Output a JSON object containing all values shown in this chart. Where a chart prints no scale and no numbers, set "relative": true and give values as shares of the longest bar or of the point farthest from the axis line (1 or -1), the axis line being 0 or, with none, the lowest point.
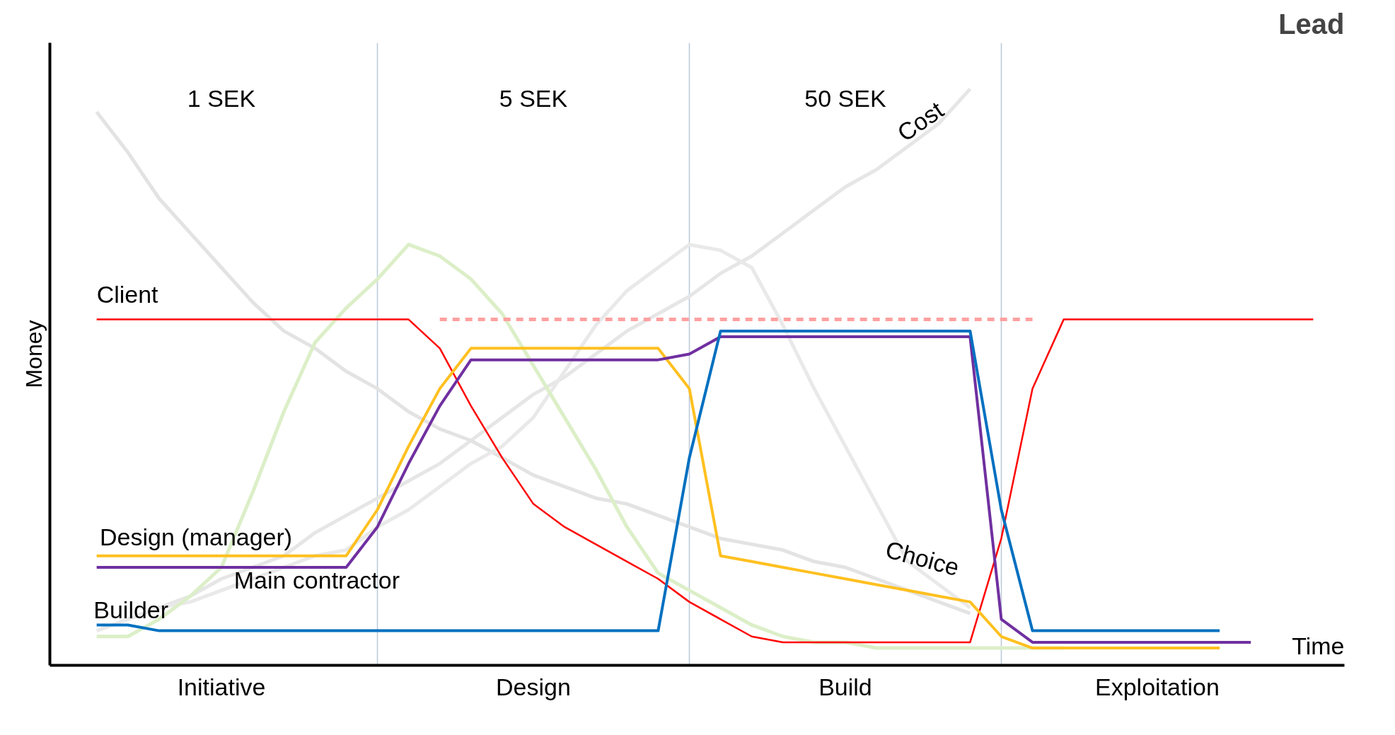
{
  "chart_data": {
    "type": "line",
    "title": "Lead",
    "xlabel": "Time",
    "ylabel": "Money",
    "relative": true,
    "legend": false,
    "grid": "x",
    "marker": "none",
    "categories": [
      null,
      null,
      null,
      null,
      null,
      "Initiative",
      null,
      null,
      null,
      null,
      null,
      null,
      null,
      null,
      null,
      "Design",
      null,
      null,
      null,
      null,
      null,
      null,
      null,
      null,
      null,
      "Build",
      null,
      null,
      null,
      null,
      null,
      null,
      null,
      null,
      null,
      "Exploitation",
      null,
      null,
      null,
      null,
      null
    ],
    "annotations": [
      "1 SEK",
      "5 SEK",
      "50 SEK"
    ],
    "series": [
      {
        "name": "Cost",
        "color": "#e6e6e6",
        "values": [
          null,
          null,
          0.08,
          0.1,
          0.12,
          0.15,
          0.17,
          0.19,
          0.23,
          0.26,
          0.29,
          0.32,
          0.35,
          0.39,
          0.43,
          0.47,
          0.5,
          0.54,
          0.58,
          0.61,
          0.64,
          0.68,
          0.71,
          0.75,
          0.79,
          0.83,
          0.86,
          0.9,
          0.94,
          1.0,
          null,
          null,
          null,
          null,
          null,
          null,
          null,
          null,
          null,
          null,
          null
        ]
      },
      {
        "name": "Choice",
        "color": "#e3e3e3",
        "values": [
          null,
          0.96,
          0.89,
          0.81,
          0.75,
          0.69,
          0.63,
          0.58,
          0.55,
          0.51,
          0.48,
          0.44,
          0.41,
          0.39,
          0.36,
          0.33,
          0.31,
          0.29,
          0.28,
          0.26,
          0.24,
          0.22,
          0.21,
          0.2,
          0.18,
          0.17,
          0.15,
          0.13,
          0.11,
          0.09,
          null,
          null,
          null,
          null,
          null,
          null,
          null,
          null,
          null,
          null,
          null
        ]
      },
      {
        "color": "#e9e9e9",
        "values": [
          null,
          0.06,
          0.08,
          0.1,
          0.11,
          0.13,
          0.15,
          0.17,
          0.19,
          0.2,
          0.24,
          0.27,
          0.31,
          0.35,
          0.38,
          0.43,
          0.51,
          0.59,
          0.65,
          0.69,
          0.73,
          0.72,
          0.69,
          0.59,
          0.48,
          0.38,
          0.28,
          0.18,
          0.14,
          0.1,
          null,
          null,
          null,
          null,
          null,
          null,
          null,
          null,
          null,
          null,
          null
        ]
      },
      {
        "color": "#dcefc8",
        "values": [
          null,
          0.05,
          0.05,
          0.08,
          0.12,
          0.17,
          0.3,
          0.44,
          0.56,
          0.62,
          0.67,
          0.73,
          0.71,
          0.67,
          0.61,
          0.52,
          0.43,
          0.34,
          0.24,
          0.16,
          0.13,
          0.1,
          0.07,
          0.05,
          0.04,
          0.04,
          0.03,
          0.03,
          0.03,
          0.03,
          0.03,
          0.03,
          0.03,
          null,
          null,
          null,
          null,
          null,
          null,
          null,
          null
        ]
      },
      {
        "color": "#ffa0a0",
        "line_style": "dashed",
        "values": [
          null,
          null,
          null,
          null,
          null,
          null,
          null,
          null,
          null,
          null,
          null,
          null,
          0.6,
          0.6,
          0.6,
          0.6,
          0.6,
          0.6,
          0.6,
          0.6,
          0.6,
          0.6,
          0.6,
          0.6,
          0.6,
          0.6,
          0.6,
          0.6,
          0.6,
          0.6,
          0.6,
          0.6,
          null,
          null,
          null,
          null,
          null,
          null,
          null,
          null,
          null
        ]
      },
      {
        "name": "Client",
        "color": "#ff0000",
        "values": [
          null,
          0.6,
          0.6,
          0.6,
          0.6,
          0.6,
          0.6,
          0.6,
          0.6,
          0.6,
          0.6,
          0.6,
          0.55,
          0.45,
          0.36,
          0.28,
          0.24,
          0.21,
          0.18,
          0.15,
          0.11,
          0.08,
          0.05,
          0.04,
          0.04,
          0.04,
          0.04,
          0.04,
          0.04,
          0.04,
          0.22,
          0.48,
          0.6,
          0.6,
          0.6,
          0.6,
          0.6,
          0.6,
          0.6,
          0.6,
          0.6
        ]
      },
      {
        "name": "Design (manager)",
        "color": "#ffc020",
        "values": [
          null,
          0.19,
          0.19,
          0.19,
          0.19,
          0.19,
          0.19,
          0.19,
          0.19,
          0.19,
          0.27,
          0.38,
          0.48,
          0.55,
          0.55,
          0.55,
          0.55,
          0.55,
          0.55,
          0.55,
          0.48,
          0.19,
          0.18,
          0.17,
          0.16,
          0.15,
          0.14,
          0.13,
          0.12,
          0.11,
          0.05,
          0.03,
          0.03,
          0.03,
          0.03,
          0.03,
          0.03,
          0.03,
          null,
          null,
          null
        ]
      },
      {
        "name": "Main contractor",
        "color": "#7030a0",
        "values": [
          null,
          0.17,
          0.17,
          0.17,
          0.17,
          0.17,
          0.17,
          0.17,
          0.17,
          0.17,
          0.24,
          0.35,
          0.45,
          0.53,
          0.53,
          0.53,
          0.53,
          0.53,
          0.53,
          0.53,
          0.54,
          0.57,
          0.57,
          0.57,
          0.57,
          0.57,
          0.57,
          0.57,
          0.57,
          0.57,
          0.08,
          0.04,
          0.04,
          0.04,
          0.04,
          0.04,
          0.04,
          0.04,
          0.04,
          null,
          null
        ]
      },
      {
        "name": "Builder",
        "color": "#0070c0",
        "values": [
          null,
          0.07,
          0.07,
          0.06,
          0.06,
          0.06,
          0.06,
          0.06,
          0.06,
          0.06,
          0.06,
          0.06,
          0.06,
          0.06,
          0.06,
          0.06,
          0.06,
          0.06,
          0.06,
          0.06,
          0.36,
          0.58,
          0.58,
          0.58,
          0.58,
          0.58,
          0.58,
          0.58,
          0.58,
          0.58,
          0.27,
          0.06,
          0.06,
          0.06,
          0.06,
          0.06,
          0.06,
          0.06,
          null,
          null,
          null
        ]
      }
    ]
  }
}
